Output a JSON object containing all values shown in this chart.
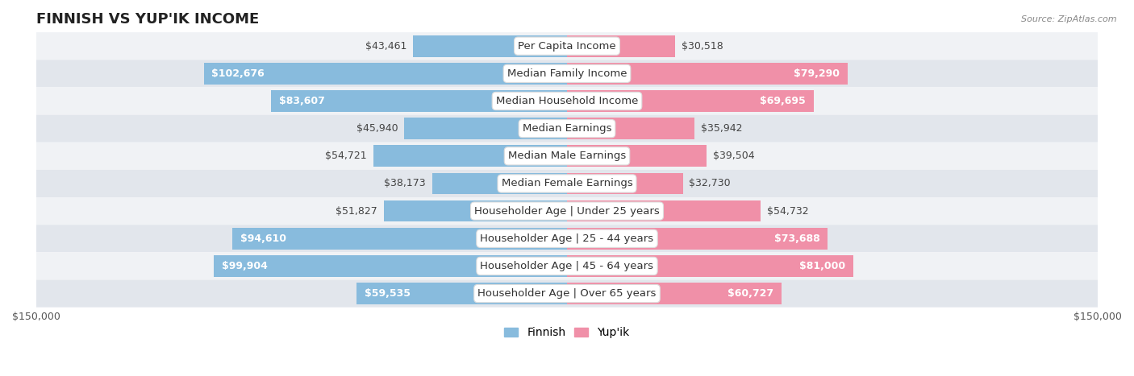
{
  "title": "Finnish vs Yup'ik Income",
  "source": "Source: ZipAtlas.com",
  "categories": [
    "Per Capita Income",
    "Median Family Income",
    "Median Household Income",
    "Median Earnings",
    "Median Male Earnings",
    "Median Female Earnings",
    "Householder Age | Under 25 years",
    "Householder Age | 25 - 44 years",
    "Householder Age | 45 - 64 years",
    "Householder Age | Over 65 years"
  ],
  "finnish_values": [
    43461,
    102676,
    83607,
    45940,
    54721,
    38173,
    51827,
    94610,
    99904,
    59535
  ],
  "yupik_values": [
    30518,
    79290,
    69695,
    35942,
    39504,
    32730,
    54732,
    73688,
    81000,
    60727
  ],
  "finnish_labels": [
    "$43,461",
    "$102,676",
    "$83,607",
    "$45,940",
    "$54,721",
    "$38,173",
    "$51,827",
    "$94,610",
    "$99,904",
    "$59,535"
  ],
  "yupik_labels": [
    "$30,518",
    "$79,290",
    "$69,695",
    "$35,942",
    "$39,504",
    "$32,730",
    "$54,732",
    "$73,688",
    "$81,000",
    "$60,727"
  ],
  "max_value": 150000,
  "finnish_color": "#88bbdd",
  "yupik_color": "#f090a8",
  "bg_row_even": "#f0f2f5",
  "bg_row_odd": "#e2e6ec",
  "label_fontsize": 9.0,
  "category_fontsize": 9.5,
  "title_fontsize": 13,
  "axis_label_fontsize": 9.0,
  "legend_fontsize": 10,
  "inside_label_threshold": 55000,
  "bar_height": 0.78
}
